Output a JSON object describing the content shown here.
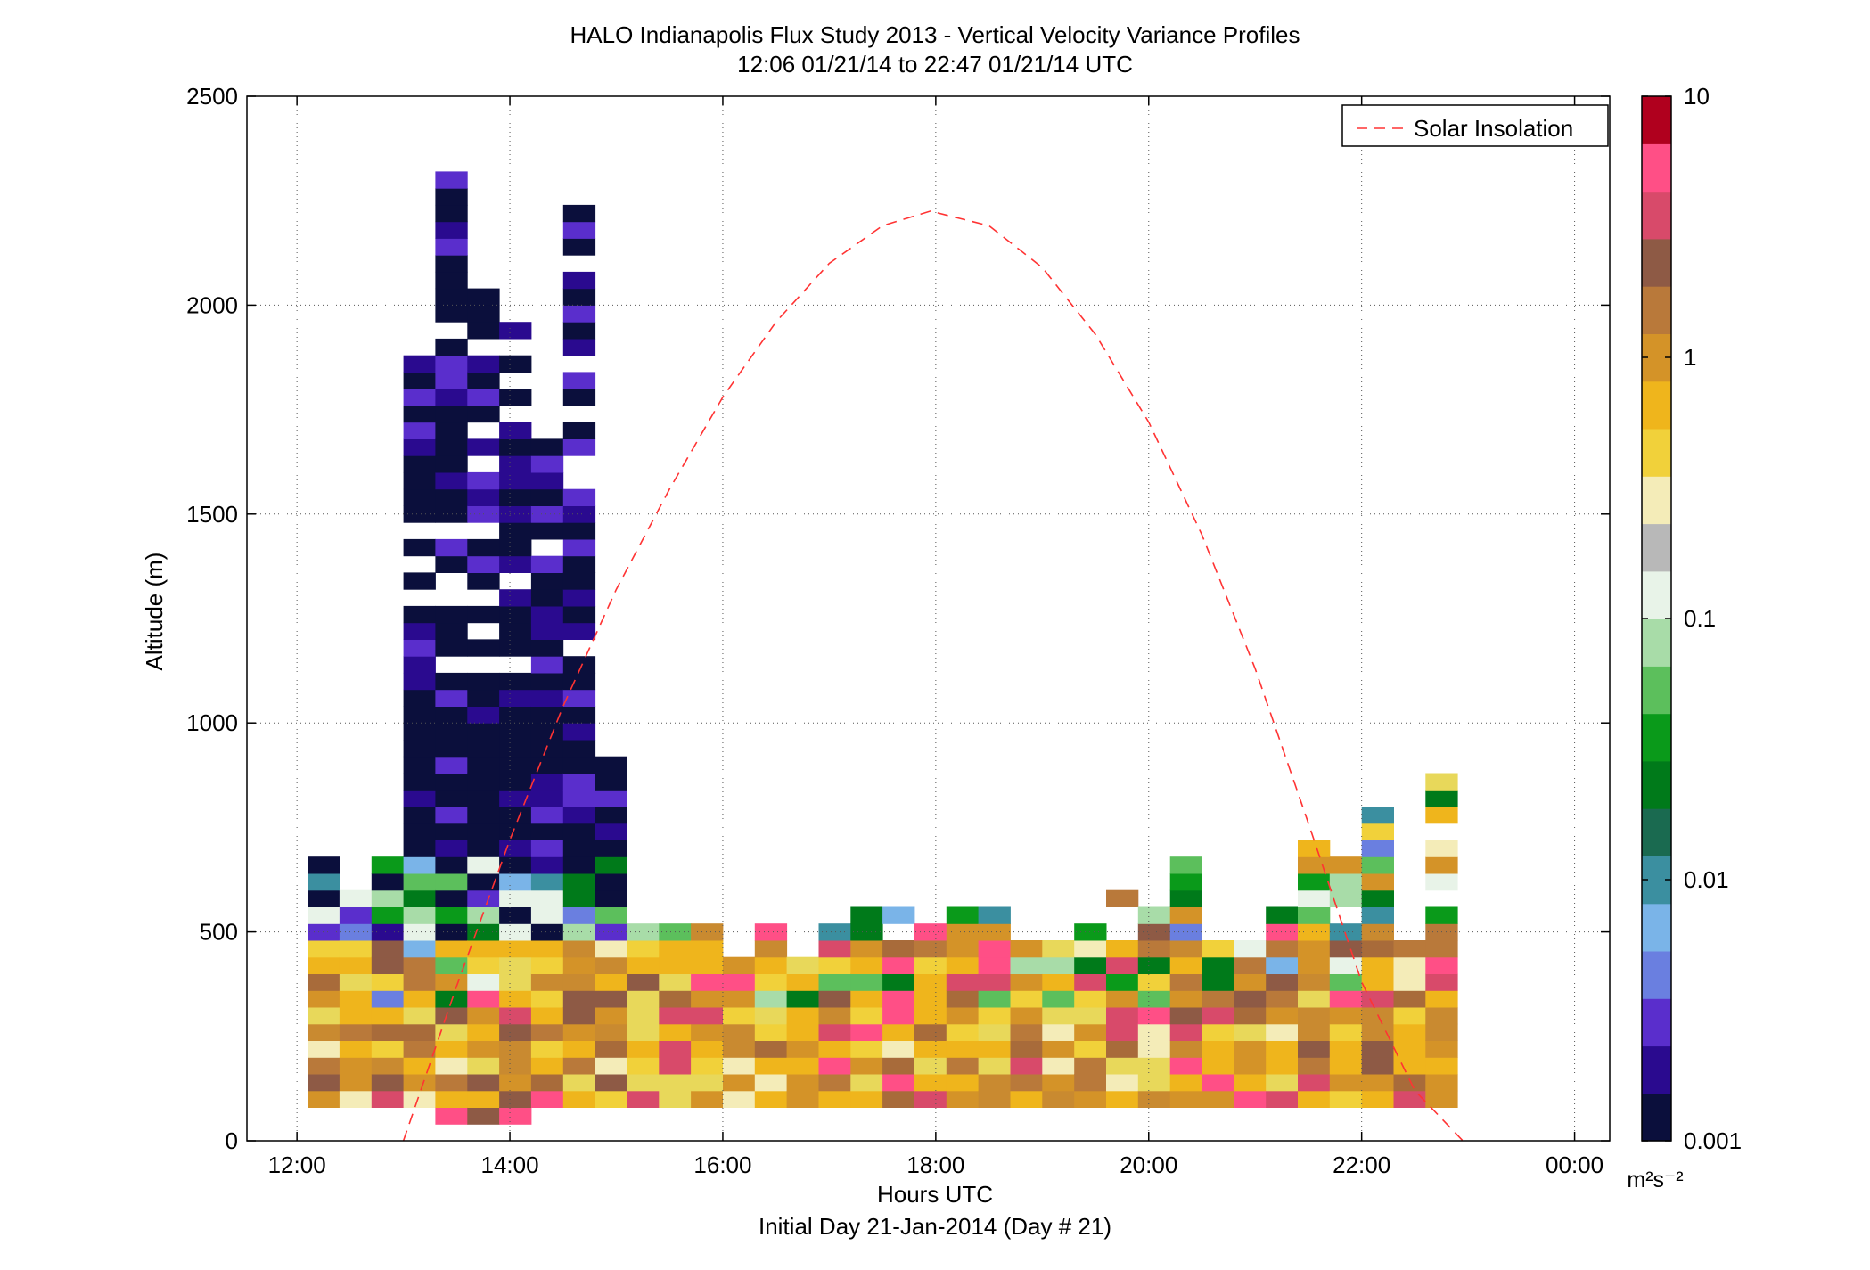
{
  "chart_data": {
    "type": "heatmap",
    "title": "HALO Indianapolis Flux Study 2013 - Vertical Velocity Variance Profiles",
    "subtitle": "12:06 01/21/14 to 22:47 01/21/14  UTC",
    "xlabel": "Hours UTC",
    "footer": "Initial Day 21-Jan-2014 (Day # 21)",
    "ylabel": "Altitude (m)",
    "xlim": [
      11.53,
      24.33
    ],
    "ylim": [
      0,
      2500
    ],
    "x_ticks": [
      12,
      14,
      16,
      18,
      20,
      22,
      24
    ],
    "x_tick_labels": [
      "12:00",
      "14:00",
      "16:00",
      "18:00",
      "20:00",
      "22:00",
      "00:00"
    ],
    "y_ticks": [
      0,
      500,
      1000,
      1500,
      2000,
      2500
    ],
    "y_tick_labels": [
      "0",
      "500",
      "1000",
      "1500",
      "2000",
      "2500"
    ],
    "grid": true,
    "cell_width_hours": 0.3,
    "cell_height_m": 40,
    "first_time": 12.1,
    "colorbar": {
      "scale": "log",
      "min": 0.001,
      "max": 10,
      "tick_values": [
        0.001,
        0.01,
        0.1,
        1,
        10
      ],
      "tick_labels": [
        "0.001",
        "0.01",
        "0.1",
        "1",
        "10"
      ],
      "units_label": "m²s⁻²",
      "colors": [
        "#0b0f3c",
        "#2a0a8f",
        "#5a2ecc",
        "#6a7fe0",
        "#7ab4e8",
        "#3b8fa0",
        "#1a6a50",
        "#007a1a",
        "#0a9a1a",
        "#5cbf5c",
        "#a8dca8",
        "#e8f3e8",
        "#b8b8b8",
        "#f4ecb8",
        "#f1d13a",
        "#efb51c",
        "#d49328",
        "#b9793a",
        "#8e5a45",
        "#d84a6a",
        "#ff4f86",
        "#b0001e"
      ]
    },
    "series": [
      {
        "name": "Solar Insolation",
        "line_style": "dashed",
        "color": "#ff3333",
        "x": [
          13.0,
          13.5,
          14.0,
          14.5,
          15.0,
          15.5,
          16.0,
          16.5,
          17.0,
          17.5,
          17.95,
          18.5,
          19.0,
          19.5,
          20.0,
          20.5,
          21.0,
          21.5,
          22.0,
          22.5,
          22.95
        ],
        "y": [
          0,
          370,
          720,
          1040,
          1320,
          1560,
          1780,
          1960,
          2100,
          2190,
          2225,
          2190,
          2090,
          1930,
          1720,
          1450,
          1130,
          760,
          380,
          120,
          0
        ]
      }
    ],
    "legend_position": "top-right",
    "columns": [
      [
        [
          "o",
          150
        ],
        [
          "o",
          50
        ],
        [
          "o",
          50
        ],
        [
          "o",
          50
        ],
        [
          "o",
          50
        ],
        [
          "o",
          50
        ],
        [
          "o",
          50
        ],
        [
          "o",
          50
        ],
        [
          "o",
          50
        ],
        [
          "k",
          80
        ],
        [
          "o",
          200
        ]
      ],
      [
        [
          "o",
          100
        ],
        [
          "o",
          200
        ],
        [
          "o",
          80
        ],
        [
          "o",
          50
        ],
        [
          "o",
          30
        ],
        [
          "y",
          30
        ],
        [
          "o",
          30
        ],
        [
          "y",
          50
        ],
        [
          "o",
          20
        ],
        [
          "k",
          150
        ]
      ],
      [
        [
          "o",
          50
        ],
        [
          "o",
          30
        ],
        [
          "o",
          200
        ],
        [
          "o",
          50
        ],
        [
          "y",
          50
        ],
        [
          "y",
          30
        ],
        [
          "y",
          50
        ],
        [
          "g",
          50
        ],
        [
          "g",
          30
        ],
        [
          "k",
          70
        ]
      ],
      [
        [
          "o",
          30
        ],
        [
          "o",
          30
        ],
        [
          "y",
          50
        ],
        [
          "y",
          50
        ],
        [
          "y",
          50
        ],
        [
          "g",
          30
        ],
        [
          "g",
          30
        ],
        [
          "g",
          30
        ],
        [
          "k",
          70
        ],
        [
          "k",
          50
        ],
        [
          "k",
          50
        ],
        [
          "k",
          50
        ]
      ],
      [
        [
          "o",
          50
        ],
        [
          "o",
          50
        ],
        [
          "o",
          50
        ],
        [
          "o",
          30
        ],
        [
          "y",
          30
        ],
        [
          "g",
          50
        ],
        [
          "k",
          70
        ],
        [
          "k",
          50
        ],
        [
          "k",
          50
        ],
        [
          "k",
          50
        ]
      ],
      [
        [
          "o",
          50
        ],
        [
          "o",
          50
        ],
        [
          "o",
          50
        ],
        [
          "o",
          50
        ],
        [
          "y",
          50
        ],
        [
          "y",
          50
        ],
        [
          "y",
          50
        ],
        [
          "g",
          30
        ],
        [
          "k",
          70
        ],
        [
          "k",
          70
        ],
        [
          "k",
          70
        ]
      ],
      [
        [
          "o",
          60
        ],
        [
          "o",
          60
        ],
        [
          "o",
          100
        ],
        [
          "o",
          60
        ],
        [
          "y",
          30
        ],
        [
          "y",
          30
        ],
        [
          "y",
          30
        ],
        [
          "g",
          30
        ],
        [
          "g",
          30
        ],
        [
          "k",
          100
        ],
        [
          "k",
          80
        ],
        [
          "k",
          60
        ]
      ]
    ]
  },
  "legend": {
    "label": "Solar Insolation"
  }
}
